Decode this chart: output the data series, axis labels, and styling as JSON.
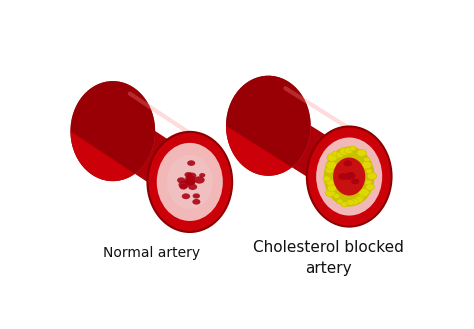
{
  "bg_color": "#ffffff",
  "label_normal": "Normal artery",
  "label_blocked": "Cholesterol blocked\nartery",
  "label_fontsize": 10,
  "label_color": "#111111",
  "outer_red": "#cc0008",
  "dark_red": "#8b0000",
  "shadow_red": "#a00008",
  "inner_pink": "#f2b8b8",
  "lumen_pink": "#f0c0c0",
  "blood_red": "#aa0010",
  "chol_yellow": "#c8c000",
  "chol_bright": "#e0d800",
  "plaque_red": "#c81010",
  "highlight_red": "#e84040"
}
